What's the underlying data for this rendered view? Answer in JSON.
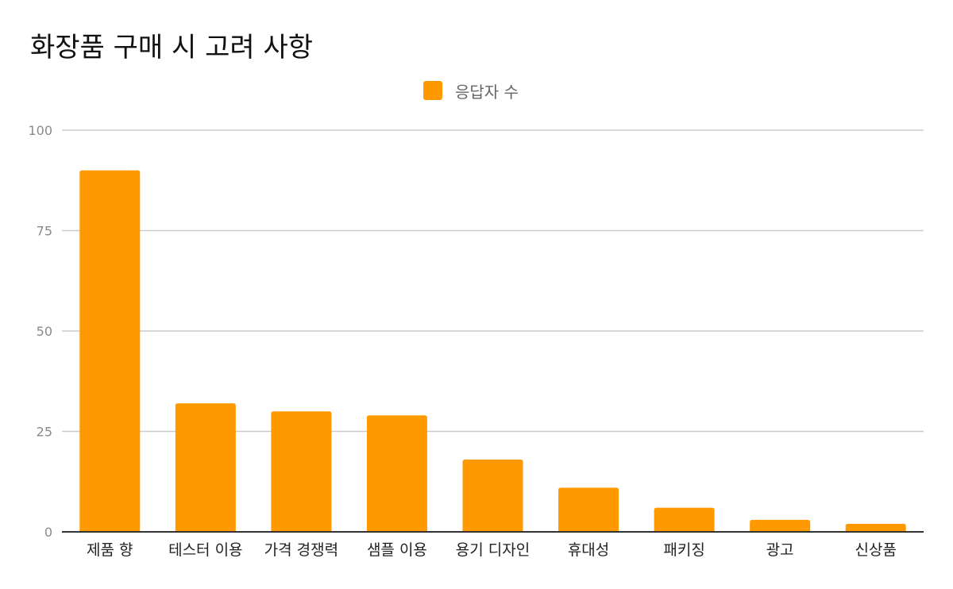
{
  "chart_data": {
    "type": "bar",
    "title": "화장품 구매 시 고려 사항",
    "xlabel": "",
    "ylabel": "",
    "categories": [
      "제품 향",
      "테스터 이용",
      "가격 경쟁력",
      "샘플 이용",
      "용기 디자인",
      "휴대성",
      "패키징",
      "광고",
      "신상품"
    ],
    "series": [
      {
        "name": "응답자 수",
        "values": [
          90,
          32,
          30,
          29,
          18,
          11,
          6,
          3,
          2
        ],
        "color": "#ff9900"
      }
    ],
    "ylim": [
      0,
      100
    ],
    "yticks": [
      "0",
      "25",
      "50",
      "75",
      "100"
    ],
    "grid": true,
    "legend_position": "top-center"
  }
}
